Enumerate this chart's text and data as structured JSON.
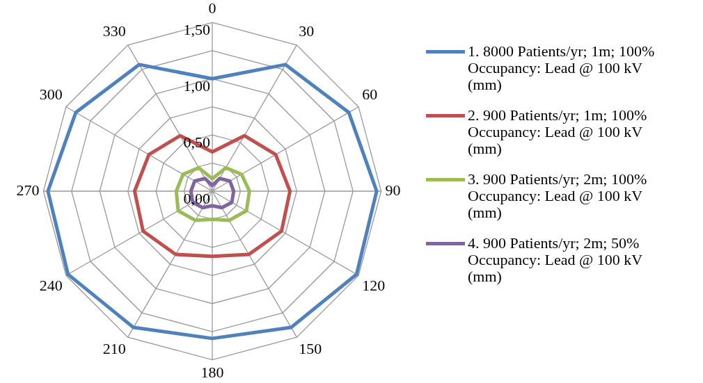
{
  "chart_data": {
    "type": "radar",
    "categories": [
      "0",
      "30",
      "60",
      "90",
      "120",
      "150",
      "180",
      "210",
      "240",
      "270",
      "300",
      "330"
    ],
    "ylim": [
      0,
      1.5
    ],
    "yticks": [
      {
        "value": 0,
        "label": "0,00"
      },
      {
        "value": 0.5,
        "label": "0,50"
      },
      {
        "value": 1,
        "label": "1,00"
      },
      {
        "value": 1.5,
        "label": "1,50"
      }
    ],
    "grid": true,
    "legend": "right",
    "marker": "none",
    "series": [
      {
        "name": "1. 8000 Patients/yr; 1m; 100% Occupancy: Lead @ 100 kV (mm)",
        "color": "#4f81bd",
        "values": [
          1.0,
          1.3,
          1.4,
          1.46,
          1.48,
          1.4,
          1.31,
          1.4,
          1.48,
          1.46,
          1.4,
          1.3
        ]
      },
      {
        "name": "2. 900 Patients/yr; 1m; 100% Occupancy: Lead @ 100 kV (mm)",
        "color": "#c0504d",
        "values": [
          0.35,
          0.57,
          0.65,
          0.69,
          0.71,
          0.65,
          0.58,
          0.65,
          0.71,
          0.69,
          0.65,
          0.57
        ]
      },
      {
        "name": "3. 900 Patients/yr; 2m; 100% Occupancy: Lead @ 100 kV (mm)",
        "color": "#9bbb59",
        "values": [
          0.11,
          0.24,
          0.3,
          0.33,
          0.35,
          0.3,
          0.25,
          0.3,
          0.35,
          0.32,
          0.3,
          0.24
        ]
      },
      {
        "name": "4. 900 Patients/yr; 2m; 50% Occupancy: Lead @ 100 kV (mm)",
        "color": "#8064a2",
        "values": [
          0.05,
          0.13,
          0.18,
          0.19,
          0.2,
          0.17,
          0.13,
          0.17,
          0.2,
          0.19,
          0.18,
          0.13
        ]
      }
    ]
  }
}
